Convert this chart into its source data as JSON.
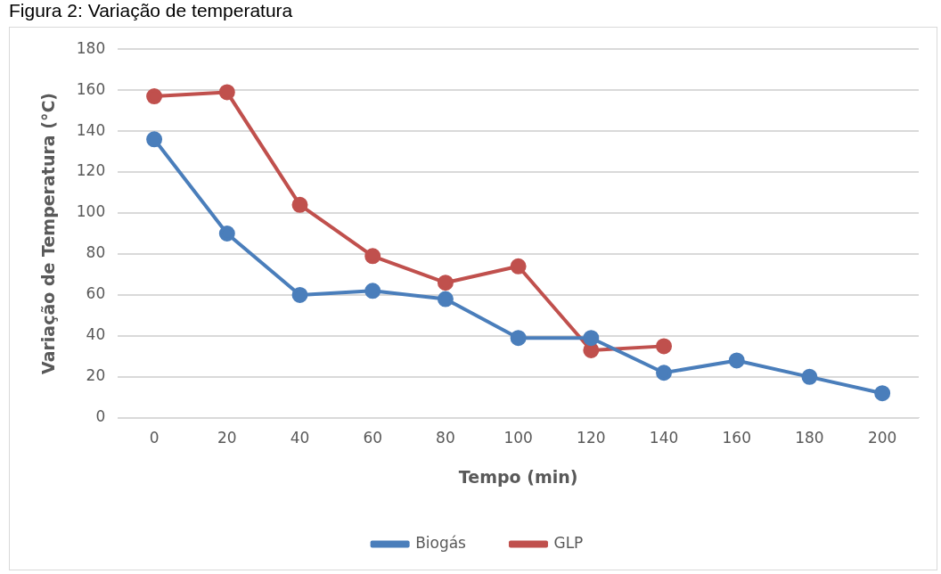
{
  "chart_data": {
    "type": "line",
    "title": "Figura 2: Variação de temperatura",
    "xlabel": "Tempo (min)",
    "ylabel": "Variação de Temperatura (°C)",
    "categories": [
      "0",
      "20",
      "40",
      "60",
      "80",
      "100",
      "120",
      "140",
      "160",
      "180",
      "200"
    ],
    "series": [
      {
        "name": "Biogás",
        "color": "#4a7ebb",
        "values": [
          136,
          90,
          60,
          62,
          58,
          39,
          39,
          22,
          28,
          20,
          12
        ]
      },
      {
        "name": "GLP",
        "color": "#c0504d",
        "values": [
          157,
          159,
          104,
          79,
          66,
          74,
          33,
          35,
          null,
          null,
          null
        ]
      }
    ],
    "ylim": [
      0,
      180
    ],
    "yticks": [
      0,
      20,
      40,
      60,
      80,
      100,
      120,
      140,
      160,
      180
    ],
    "grid": "y",
    "legend": "bottom",
    "marker": "circle",
    "line_style": "solid"
  }
}
